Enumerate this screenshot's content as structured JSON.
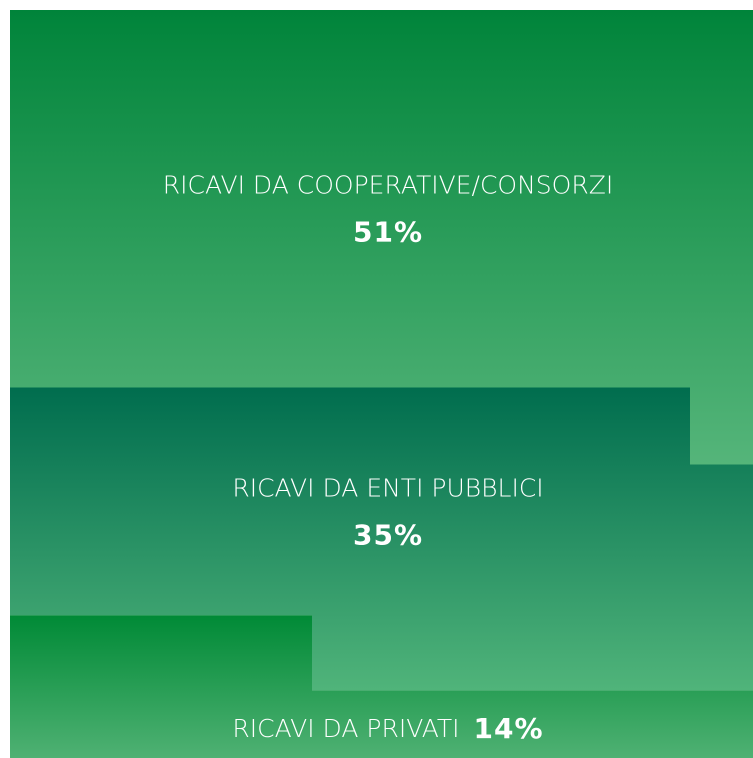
{
  "chart_data": {
    "type": "blocks",
    "categories": [
      "RICAVI DA COOPERATIVE/CONSORZI",
      "RICAVI DA ENTI PUBBLICI",
      "RICAVI DA PRIVATI"
    ],
    "values": [
      51,
      35,
      14
    ],
    "value_labels": [
      "51%",
      "35%",
      "14%"
    ],
    "colors": [
      [
        "#00843a",
        "#55b57a"
      ],
      [
        "#006d4e",
        "#50b47a"
      ],
      [
        "#008a36",
        "#4fb173"
      ]
    ]
  }
}
